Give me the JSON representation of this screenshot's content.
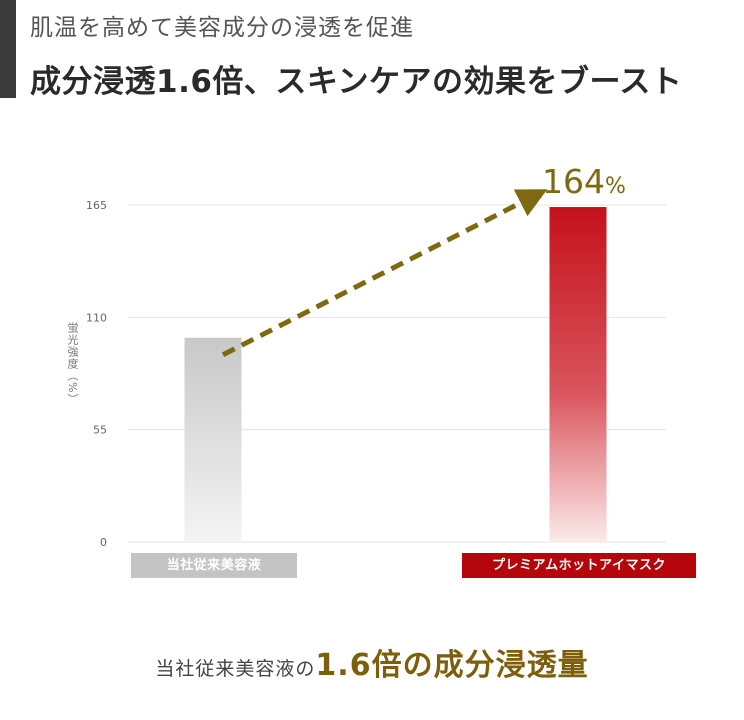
{
  "header": {
    "subtitle": "肌温を高めて美容成分の浸透を促進",
    "title": "成分浸透1.6倍、スキンケアの効果をブースト"
  },
  "chart_data": {
    "type": "bar",
    "categories": [
      "当社従来美容液",
      "プレミアムホットアイマスク"
    ],
    "values": [
      100,
      164
    ],
    "ylabel": "蛍光強度（%）",
    "ylim": [
      0,
      165
    ],
    "yticks": [
      0,
      55,
      110,
      165
    ],
    "annotation": {
      "value_label": "164",
      "unit": "%"
    },
    "colors": {
      "bar_a": "#c8c8c8",
      "bar_b": "#c4121b",
      "arrow": "#7d6a10"
    },
    "grid": true
  },
  "caption": {
    "prefix": "当社従来美容液の",
    "highlight": "1.6倍の成分浸透量"
  }
}
